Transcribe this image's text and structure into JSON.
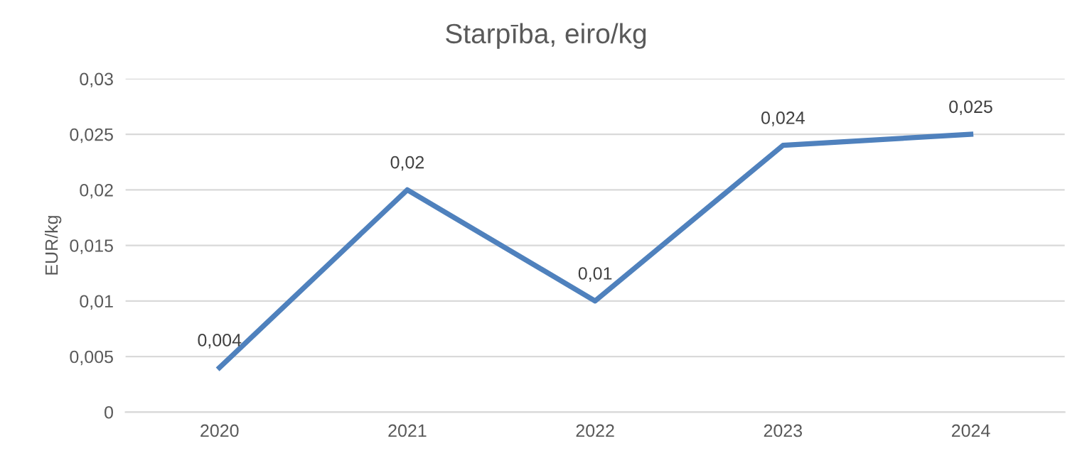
{
  "chart_data": {
    "type": "line",
    "title": "Starpība, eiro/kg",
    "ylabel": "EUR/kg",
    "categories": [
      "2020",
      "2021",
      "2022",
      "2023",
      "2024"
    ],
    "series": [
      {
        "color": "#4f81bd",
        "values": [
          0.004,
          0.02,
          0.01,
          0.024,
          0.025
        ],
        "value_labels": [
          "0,004",
          "0,02",
          "0,01",
          "0,024",
          "0,025"
        ]
      }
    ],
    "ylim": [
      0,
      0.03
    ],
    "yticks": [
      {
        "value": 0,
        "label": "0"
      },
      {
        "value": 0.005,
        "label": "0,005"
      },
      {
        "value": 0.01,
        "label": "0,01"
      },
      {
        "value": 0.015,
        "label": "0,015"
      },
      {
        "value": 0.02,
        "label": "0,02"
      },
      {
        "value": 0.025,
        "label": "0,025"
      },
      {
        "value": 0.03,
        "label": "0,03"
      }
    ],
    "grid": "y",
    "marker": "none",
    "line_style": "solid",
    "legend": false
  }
}
